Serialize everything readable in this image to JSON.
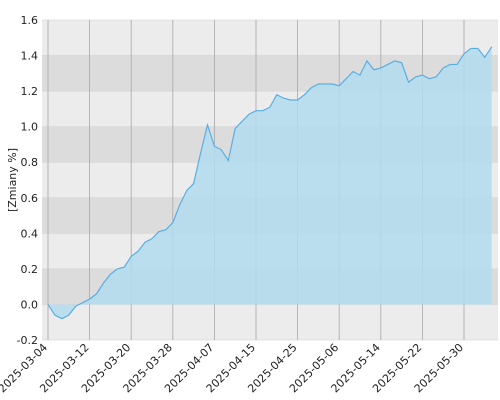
{
  "chart_data": {
    "type": "area",
    "y_label": "[Zmiany %]",
    "categories": [
      "2025-03-04",
      null,
      null,
      null,
      null,
      null,
      "2025-03-12",
      null,
      null,
      null,
      null,
      null,
      "2025-03-20",
      null,
      null,
      null,
      null,
      null,
      "2025-03-28",
      null,
      null,
      null,
      null,
      null,
      "2025-04-07",
      null,
      null,
      null,
      null,
      null,
      "2025-04-15",
      null,
      null,
      null,
      null,
      null,
      "2025-04-25",
      null,
      null,
      null,
      null,
      null,
      "2025-05-06",
      null,
      null,
      null,
      null,
      null,
      "2025-05-14",
      null,
      null,
      null,
      null,
      null,
      "2025-05-22",
      null,
      null,
      null,
      null,
      null,
      "2025-05-30",
      null,
      null,
      null,
      null
    ],
    "values": [
      0.0,
      -0.06,
      -0.08,
      -0.06,
      -0.01,
      0.01,
      0.03,
      0.06,
      0.12,
      0.17,
      0.2,
      0.21,
      0.27,
      0.3,
      0.35,
      0.37,
      0.41,
      0.42,
      0.46,
      0.56,
      0.64,
      0.68,
      0.85,
      1.01,
      0.89,
      0.87,
      0.81,
      0.99,
      1.03,
      1.07,
      1.09,
      1.09,
      1.11,
      1.18,
      1.16,
      1.15,
      1.15,
      1.18,
      1.22,
      1.24,
      1.24,
      1.24,
      1.23,
      1.27,
      1.31,
      1.29,
      1.37,
      1.32,
      1.33,
      1.35,
      1.37,
      1.36,
      1.25,
      1.28,
      1.29,
      1.27,
      1.28,
      1.33,
      1.35,
      1.35,
      1.41,
      1.44,
      1.44,
      1.39,
      1.45
    ],
    "color": "#5aaee3",
    "fill": "#b3dcef",
    "ylim": [
      -0.2,
      1.6
    ],
    "yticks": [
      -0.2,
      {
        "value": 0,
        "label": "0.0"
      },
      0.2,
      0.4,
      0.6,
      0.8,
      {
        "value": 1,
        "label": "1.0"
      },
      1.2,
      1.4,
      1.6
    ],
    "grid": true
  }
}
